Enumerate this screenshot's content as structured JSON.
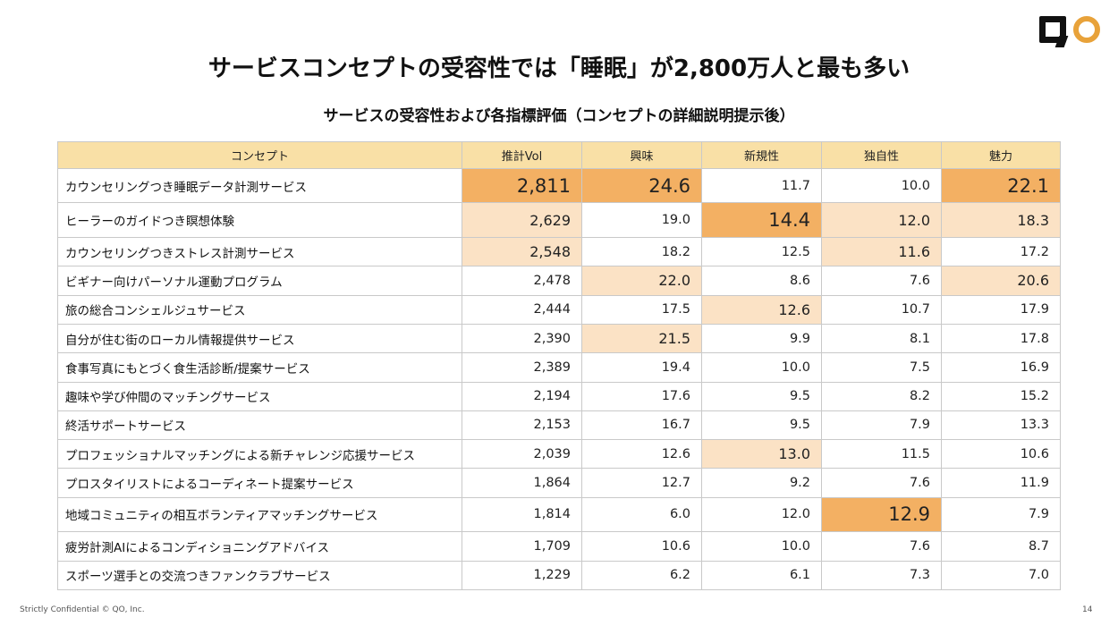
{
  "title": "サービスコンセプトの受容性では「睡眠」が2,800万人と最も多い",
  "subtitle": "サービスの受容性および各指標評価（コンセプトの詳細説明提示後）",
  "table": {
    "headers": [
      "コンセプト",
      "推計Vol",
      "興味",
      "新規性",
      "独自性",
      "魅力"
    ],
    "rows": [
      {
        "name": "カウンセリングつき睡眠データ計測サービス",
        "values": [
          "2,811",
          "24.6",
          "11.7",
          "10.0",
          "22.1"
        ],
        "levels": [
          2,
          2,
          0,
          0,
          2
        ]
      },
      {
        "name": "ヒーラーのガイドつき瞑想体験",
        "values": [
          "2,629",
          "19.0",
          "14.4",
          "12.0",
          "18.3"
        ],
        "levels": [
          1,
          0,
          2,
          1,
          1
        ]
      },
      {
        "name": "カウンセリングつきストレス計測サービス",
        "values": [
          "2,548",
          "18.2",
          "12.5",
          "11.6",
          "17.2"
        ],
        "levels": [
          1,
          0,
          0,
          1,
          0
        ]
      },
      {
        "name": "ビギナー向けパーソナル運動プログラム",
        "values": [
          "2,478",
          "22.0",
          "8.6",
          "7.6",
          "20.6"
        ],
        "levels": [
          0,
          1,
          0,
          0,
          1
        ]
      },
      {
        "name": "旅の総合コンシェルジュサービス",
        "values": [
          "2,444",
          "17.5",
          "12.6",
          "10.7",
          "17.9"
        ],
        "levels": [
          0,
          0,
          1,
          0,
          0
        ]
      },
      {
        "name": "自分が住む街のローカル情報提供サービス",
        "values": [
          "2,390",
          "21.5",
          "9.9",
          "8.1",
          "17.8"
        ],
        "levels": [
          0,
          1,
          0,
          0,
          0
        ]
      },
      {
        "name": "食事写真にもとづく食生活診断/提案サービス",
        "values": [
          "2,389",
          "19.4",
          "10.0",
          "7.5",
          "16.9"
        ],
        "levels": [
          0,
          0,
          0,
          0,
          0
        ]
      },
      {
        "name": "趣味や学び仲間のマッチングサービス",
        "values": [
          "2,194",
          "17.6",
          "9.5",
          "8.2",
          "15.2"
        ],
        "levels": [
          0,
          0,
          0,
          0,
          0
        ]
      },
      {
        "name": "終活サポートサービス",
        "values": [
          "2,153",
          "16.7",
          "9.5",
          "7.9",
          "13.3"
        ],
        "levels": [
          0,
          0,
          0,
          0,
          0
        ]
      },
      {
        "name": "プロフェッショナルマッチングによる新チャレンジ応援サービス",
        "values": [
          "2,039",
          "12.6",
          "13.0",
          "11.5",
          "10.6"
        ],
        "levels": [
          0,
          0,
          1,
          0,
          0
        ]
      },
      {
        "name": "プロスタイリストによるコーディネート提案サービス",
        "values": [
          "1,864",
          "12.7",
          "9.2",
          "7.6",
          "11.9"
        ],
        "levels": [
          0,
          0,
          0,
          0,
          0
        ]
      },
      {
        "name": "地域コミュニティの相互ボランティアマッチングサービス",
        "values": [
          "1,814",
          "6.0",
          "12.0",
          "12.9",
          "7.9"
        ],
        "levels": [
          0,
          0,
          0,
          2,
          0
        ]
      },
      {
        "name": "疲労計測AIによるコンディショニングアドバイス",
        "values": [
          "1,709",
          "10.6",
          "10.0",
          "7.6",
          "8.7"
        ],
        "levels": [
          0,
          0,
          0,
          0,
          0
        ]
      },
      {
        "name": "スポーツ選手との交流つきファンクラブサービス",
        "values": [
          "1,229",
          "6.2",
          "6.1",
          "7.3",
          "7.0"
        ],
        "levels": [
          0,
          0,
          0,
          0,
          0
        ]
      }
    ]
  },
  "colors": {
    "header_bg": "#F9E0A6",
    "highlight_strong": "#F3B063",
    "highlight_light": "#FBE2C5",
    "logo_ring": "#E8A23A"
  },
  "footer": {
    "confidential": "Strictly Confidential © QO, Inc.",
    "page_number": "14"
  }
}
